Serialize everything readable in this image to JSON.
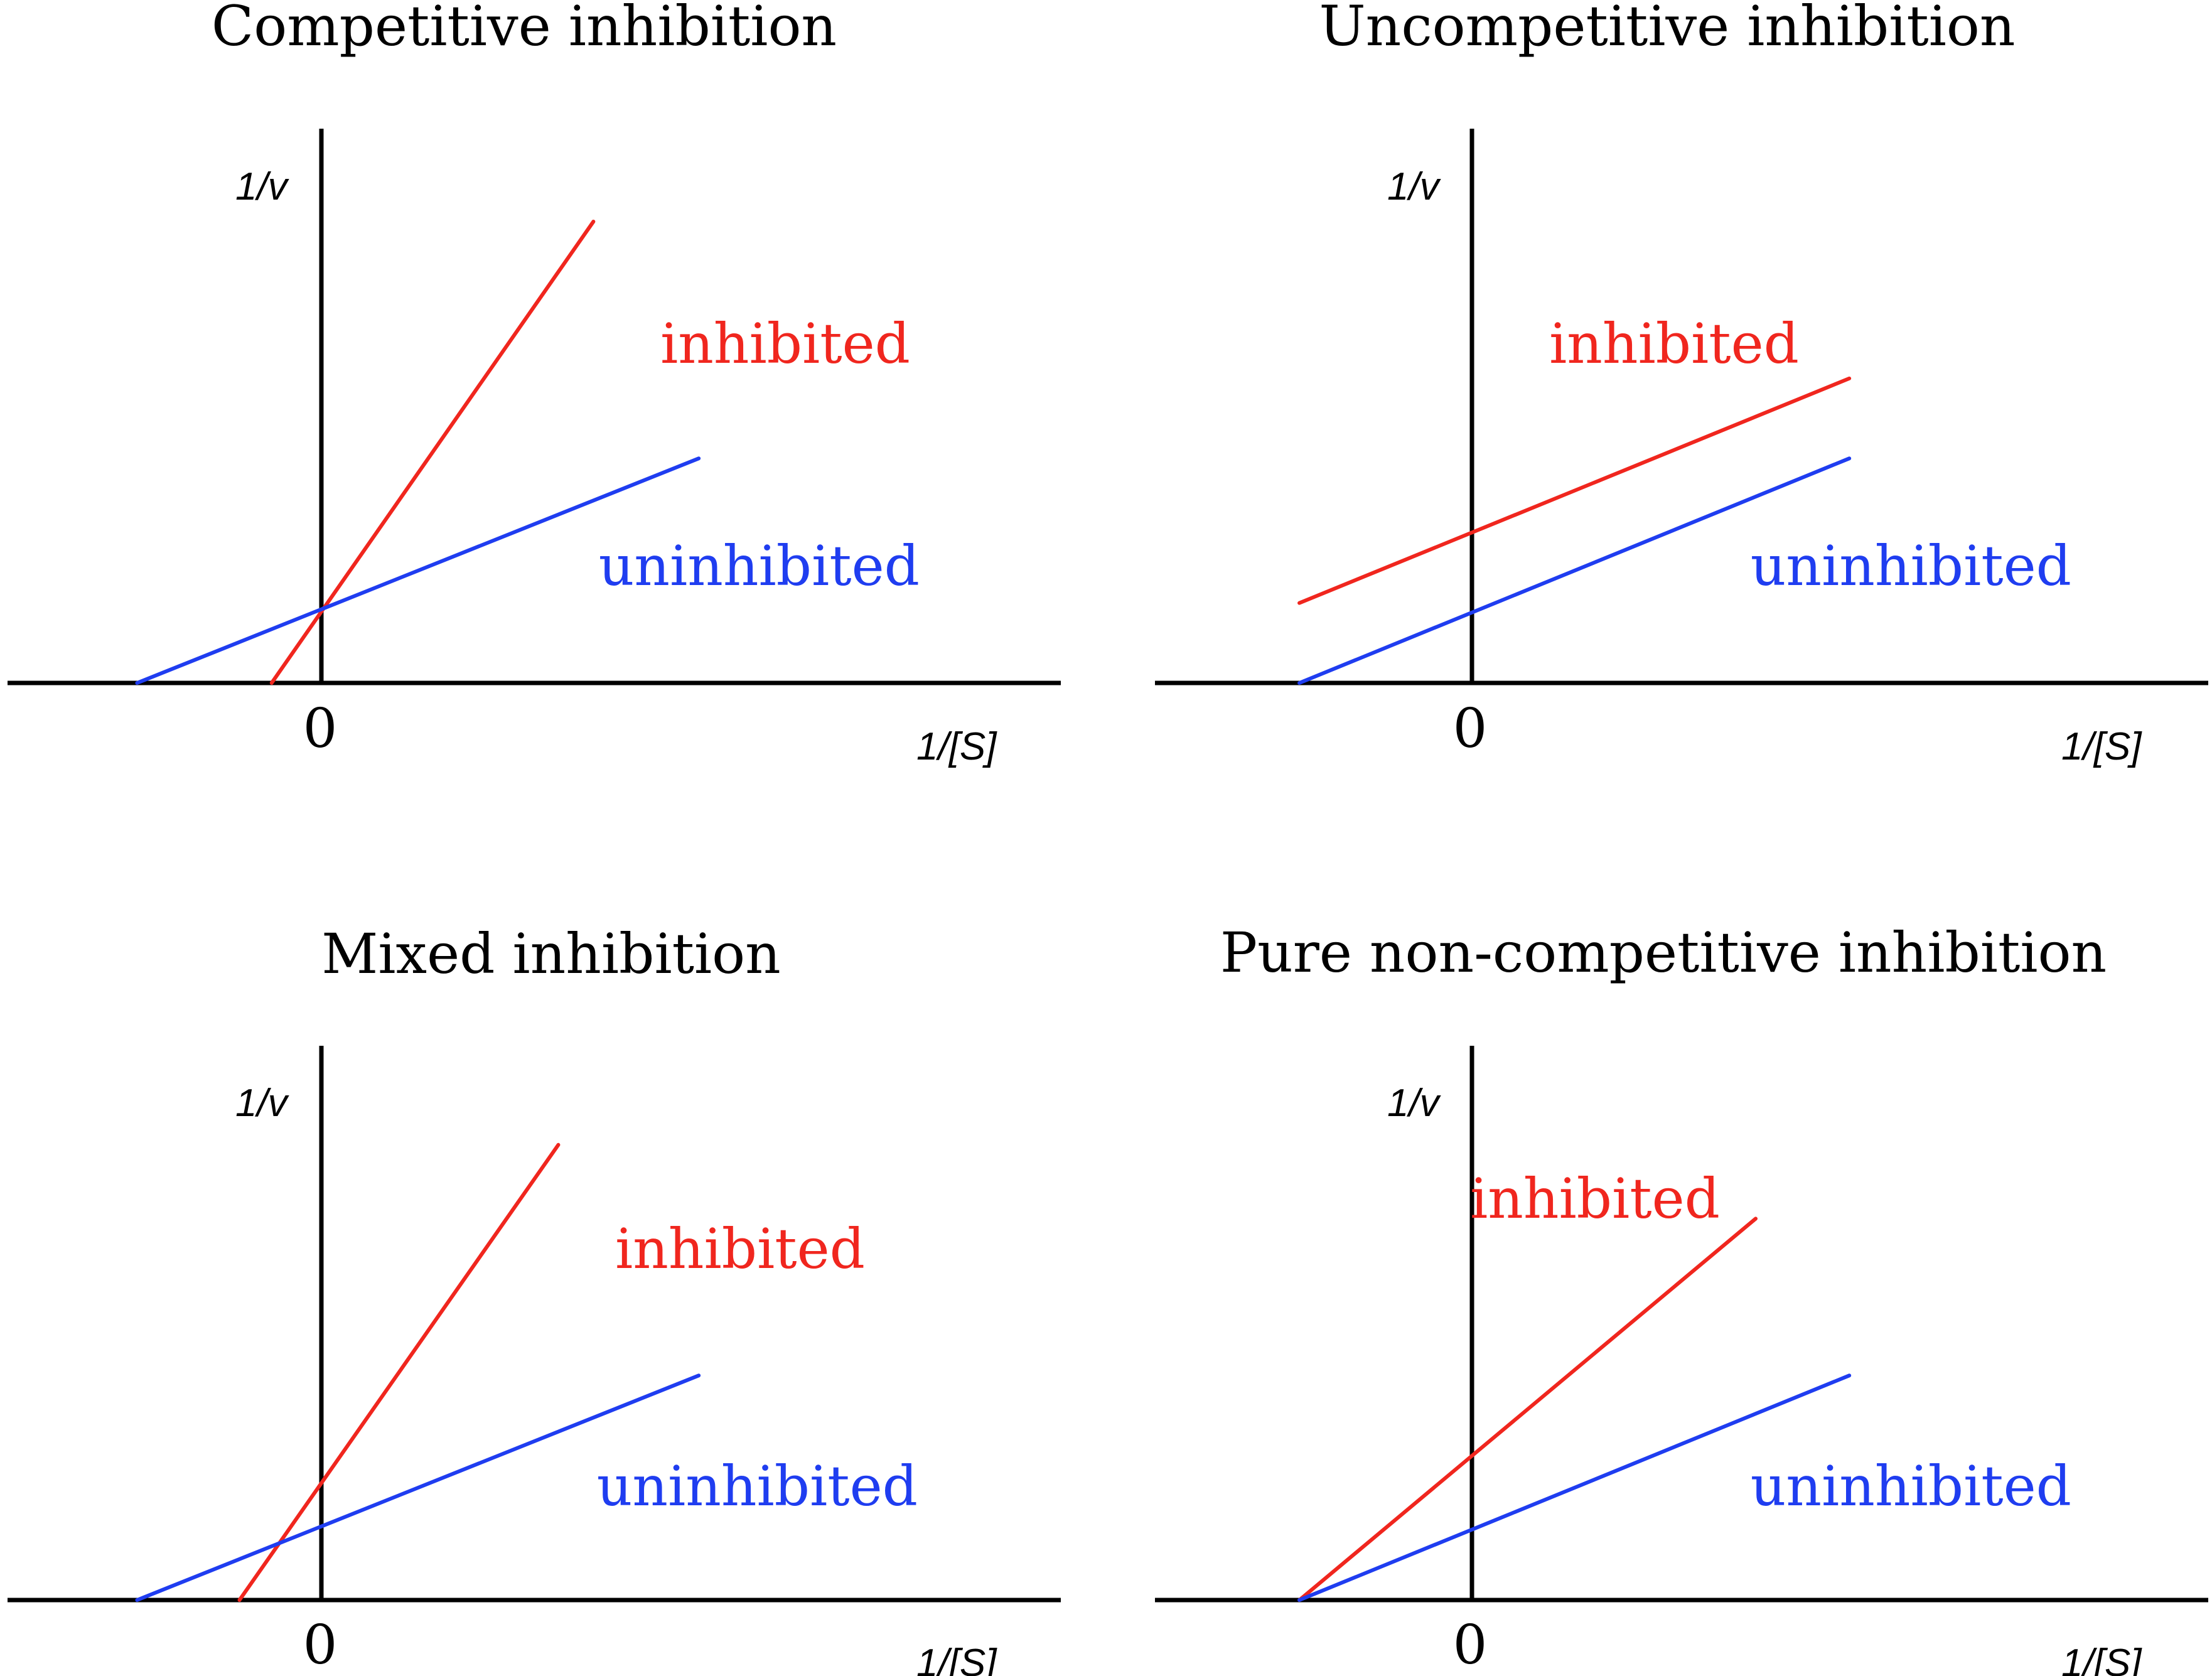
{
  "colors": {
    "axis": "#000000",
    "inhibited": "#f0261e",
    "uninhibited": "#1f3df0"
  },
  "chart_data": [
    {
      "type": "line",
      "title": "Competitive inhibition",
      "xlabel": "1/[S]",
      "ylabel": "1/v",
      "origin_label": "0",
      "xlim": [
        -0.66,
        1.6
      ],
      "ylim": [
        0,
        1.75
      ],
      "series": [
        {
          "name": "inhibited",
          "color": "#f0261e",
          "x": [
            -0.17,
            0.93
          ],
          "y": [
            0,
            1.5
          ]
        },
        {
          "name": "uninhibited",
          "color": "#1f3df0",
          "x": [
            -0.63,
            1.29
          ],
          "y": [
            0,
            0.73
          ]
        }
      ]
    },
    {
      "type": "line",
      "title": "Uncompetitive inhibition",
      "xlabel": "1/[S]",
      "ylabel": "1/v",
      "origin_label": "0",
      "xlim": [
        -0.66,
        1.6
      ],
      "ylim": [
        0,
        1.75
      ],
      "series": [
        {
          "name": "inhibited",
          "color": "#f0261e",
          "x": [
            -0.59,
            1.29
          ],
          "y": [
            0.26,
            0.99
          ]
        },
        {
          "name": "uninhibited",
          "color": "#1f3df0",
          "x": [
            -0.59,
            1.29
          ],
          "y": [
            0,
            0.73
          ]
        }
      ]
    },
    {
      "type": "line",
      "title": "Mixed inhibition",
      "xlabel": "1/[S]",
      "ylabel": "1/v",
      "origin_label": "0",
      "xlim": [
        -0.66,
        1.6
      ],
      "ylim": [
        0,
        1.75
      ],
      "series": [
        {
          "name": "inhibited",
          "color": "#f0261e",
          "x": [
            -0.28,
            0.81
          ],
          "y": [
            0,
            1.48
          ]
        },
        {
          "name": "uninhibited",
          "color": "#1f3df0",
          "x": [
            -0.63,
            1.29
          ],
          "y": [
            0,
            0.73
          ]
        }
      ]
    },
    {
      "type": "line",
      "title": "Pure non-competitive inhibition",
      "xlabel": "1/[S]",
      "ylabel": "1/v",
      "origin_label": "0",
      "xlim": [
        -0.66,
        1.6
      ],
      "ylim": [
        0,
        1.75
      ],
      "series": [
        {
          "name": "inhibited",
          "color": "#f0261e",
          "x": [
            -0.59,
            0.97
          ],
          "y": [
            0,
            1.24
          ]
        },
        {
          "name": "uninhibited",
          "color": "#1f3df0",
          "x": [
            -0.59,
            1.29
          ],
          "y": [
            0,
            0.73
          ]
        }
      ]
    }
  ]
}
